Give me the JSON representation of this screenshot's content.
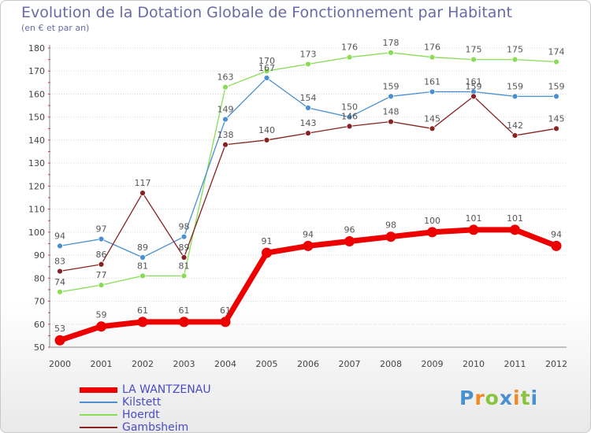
{
  "chart_data": {
    "type": "line",
    "title": "Evolution de la Dotation Globale de Fonctionnement par Habitant",
    "subtitle": "(en € et par an)",
    "xlabel": "",
    "ylabel": "",
    "ylim": [
      50,
      180
    ],
    "yticks": [
      50,
      60,
      70,
      80,
      90,
      100,
      110,
      120,
      130,
      140,
      150,
      160,
      170,
      180
    ],
    "categories": [
      "2000",
      "2001",
      "2002",
      "2003",
      "2004",
      "2005",
      "2006",
      "2007",
      "2008",
      "2009",
      "2010",
      "2011",
      "2012"
    ],
    "series": [
      {
        "name": "Hoerdt",
        "color": "#88dd55",
        "values": [
          74,
          77,
          81,
          81,
          163,
          170,
          173,
          176,
          178,
          176,
          175,
          175,
          174
        ]
      },
      {
        "name": "Kilstett",
        "color": "#4a90d0",
        "values": [
          94,
          97,
          89,
          98,
          149,
          167,
          154,
          150,
          159,
          161,
          161,
          159,
          159
        ]
      },
      {
        "name": "Gambsheim",
        "color": "#882222",
        "values": [
          83,
          86,
          117,
          89,
          138,
          140,
          143,
          146,
          148,
          145,
          159,
          142,
          145
        ]
      },
      {
        "name": "LA WANTZENAU",
        "color": "#ee0000",
        "values": [
          53,
          59,
          61,
          61,
          61,
          91,
          94,
          96,
          98,
          100,
          101,
          101,
          94
        ]
      }
    ],
    "legend": [
      "LA WANTZENAU",
      "Kilstett",
      "Hoerdt",
      "Gambsheim"
    ],
    "grid": true
  },
  "logo": {
    "letters": [
      "P",
      "r",
      "o",
      "x",
      "i",
      "t",
      "i"
    ],
    "colors": [
      "#4a90d0",
      "#f08a24",
      "#88c440",
      "#4a90d0",
      "#f08a24",
      "#88c440",
      "#4a90d0"
    ]
  }
}
